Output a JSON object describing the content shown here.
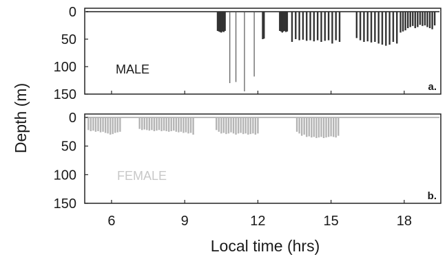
{
  "chart_data": [
    {
      "type": "bar",
      "panel_tag": "a.",
      "label": "MALE",
      "ylabel": "Depth (m)",
      "xlabel": "Local time (hrs)",
      "ylim": [
        150,
        0
      ],
      "xlim": [
        4.9,
        19.5
      ],
      "yticks": [
        "0",
        "50",
        "100",
        "150"
      ],
      "xticks": [
        "6",
        "9",
        "12",
        "15",
        "18"
      ],
      "y_inverted": true,
      "grid": false,
      "colors": {
        "label": "#1a1a1a",
        "dives": "#333333",
        "deep_dives": "#555555"
      },
      "series": [
        {
          "dives": [
            {
              "t": 10.35,
              "depth": 35
            },
            {
              "t": 10.4,
              "depth": 36
            },
            {
              "t": 10.45,
              "depth": 37
            },
            {
              "t": 10.5,
              "depth": 38
            },
            {
              "t": 10.55,
              "depth": 36
            },
            {
              "t": 10.6,
              "depth": 37
            },
            {
              "t": 10.65,
              "depth": 35
            },
            {
              "t": 10.85,
              "depth": 130
            },
            {
              "t": 11.1,
              "depth": 128
            },
            {
              "t": 11.45,
              "depth": 145
            },
            {
              "t": 11.85,
              "depth": 118
            },
            {
              "t": 12.2,
              "depth": 50
            },
            {
              "t": 12.25,
              "depth": 49
            },
            {
              "t": 12.9,
              "depth": 35
            },
            {
              "t": 12.95,
              "depth": 36
            },
            {
              "t": 13.0,
              "depth": 38
            },
            {
              "t": 13.05,
              "depth": 36
            },
            {
              "t": 13.1,
              "depth": 35
            },
            {
              "t": 13.15,
              "depth": 37
            },
            {
              "t": 13.2,
              "depth": 36
            },
            {
              "t": 13.4,
              "depth": 55
            },
            {
              "t": 13.55,
              "depth": 50
            },
            {
              "t": 13.7,
              "depth": 52
            },
            {
              "t": 13.85,
              "depth": 51
            },
            {
              "t": 14.0,
              "depth": 53
            },
            {
              "t": 14.15,
              "depth": 52
            },
            {
              "t": 14.3,
              "depth": 54
            },
            {
              "t": 14.45,
              "depth": 52
            },
            {
              "t": 14.6,
              "depth": 55
            },
            {
              "t": 14.75,
              "depth": 53
            },
            {
              "t": 14.9,
              "depth": 52
            },
            {
              "t": 15.05,
              "depth": 58
            },
            {
              "t": 15.2,
              "depth": 52
            },
            {
              "t": 15.35,
              "depth": 55
            },
            {
              "t": 16.05,
              "depth": 48
            },
            {
              "t": 16.2,
              "depth": 52
            },
            {
              "t": 16.35,
              "depth": 55
            },
            {
              "t": 16.5,
              "depth": 54
            },
            {
              "t": 16.65,
              "depth": 56
            },
            {
              "t": 16.8,
              "depth": 55
            },
            {
              "t": 16.95,
              "depth": 58
            },
            {
              "t": 17.1,
              "depth": 60
            },
            {
              "t": 17.25,
              "depth": 62
            },
            {
              "t": 17.4,
              "depth": 60
            },
            {
              "t": 17.55,
              "depth": 55
            },
            {
              "t": 17.7,
              "depth": 58
            },
            {
              "t": 17.85,
              "depth": 38
            },
            {
              "t": 17.95,
              "depth": 36
            },
            {
              "t": 18.05,
              "depth": 34
            },
            {
              "t": 18.15,
              "depth": 30
            },
            {
              "t": 18.25,
              "depth": 28
            },
            {
              "t": 18.35,
              "depth": 26
            },
            {
              "t": 18.45,
              "depth": 30
            },
            {
              "t": 18.55,
              "depth": 28
            },
            {
              "t": 18.65,
              "depth": 24
            },
            {
              "t": 18.75,
              "depth": 26
            },
            {
              "t": 18.85,
              "depth": 25
            },
            {
              "t": 18.95,
              "depth": 28
            },
            {
              "t": 19.05,
              "depth": 30
            },
            {
              "t": 19.15,
              "depth": 32
            },
            {
              "t": 19.25,
              "depth": 25
            }
          ]
        }
      ]
    },
    {
      "type": "bar",
      "panel_tag": "b.",
      "label": "FEMALE",
      "ylabel": "Depth (m)",
      "xlabel": "Local time (hrs)",
      "ylim": [
        150,
        0
      ],
      "xlim": [
        4.9,
        19.5
      ],
      "yticks": [
        "0",
        "50",
        "100",
        "150"
      ],
      "xticks": [
        "6",
        "9",
        "12",
        "15",
        "18"
      ],
      "y_inverted": true,
      "grid": false,
      "colors": {
        "label": "#c8c8c8",
        "dives": "#b4b4b4"
      },
      "series": [
        {
          "dives": [
            {
              "t": 5.05,
              "depth": 22
            },
            {
              "t": 5.15,
              "depth": 24
            },
            {
              "t": 5.25,
              "depth": 23
            },
            {
              "t": 5.35,
              "depth": 25
            },
            {
              "t": 5.45,
              "depth": 24
            },
            {
              "t": 5.55,
              "depth": 26
            },
            {
              "t": 5.65,
              "depth": 25
            },
            {
              "t": 5.75,
              "depth": 27
            },
            {
              "t": 5.85,
              "depth": 28
            },
            {
              "t": 5.95,
              "depth": 30
            },
            {
              "t": 6.05,
              "depth": 29
            },
            {
              "t": 6.15,
              "depth": 27
            },
            {
              "t": 6.25,
              "depth": 26
            },
            {
              "t": 6.35,
              "depth": 25
            },
            {
              "t": 7.15,
              "depth": 20
            },
            {
              "t": 7.25,
              "depth": 22
            },
            {
              "t": 7.35,
              "depth": 21
            },
            {
              "t": 7.45,
              "depth": 22
            },
            {
              "t": 7.55,
              "depth": 23
            },
            {
              "t": 7.65,
              "depth": 22
            },
            {
              "t": 7.75,
              "depth": 24
            },
            {
              "t": 7.85,
              "depth": 23
            },
            {
              "t": 7.95,
              "depth": 22
            },
            {
              "t": 8.05,
              "depth": 24
            },
            {
              "t": 8.15,
              "depth": 23
            },
            {
              "t": 8.25,
              "depth": 24
            },
            {
              "t": 8.35,
              "depth": 25
            },
            {
              "t": 8.45,
              "depth": 24
            },
            {
              "t": 8.55,
              "depth": 23
            },
            {
              "t": 8.65,
              "depth": 25
            },
            {
              "t": 8.75,
              "depth": 26
            },
            {
              "t": 8.85,
              "depth": 25
            },
            {
              "t": 8.95,
              "depth": 27
            },
            {
              "t": 9.05,
              "depth": 26
            },
            {
              "t": 9.15,
              "depth": 28
            },
            {
              "t": 9.25,
              "depth": 27
            },
            {
              "t": 9.35,
              "depth": 30
            },
            {
              "t": 10.3,
              "depth": 22
            },
            {
              "t": 10.4,
              "depth": 25
            },
            {
              "t": 10.5,
              "depth": 28
            },
            {
              "t": 10.6,
              "depth": 27
            },
            {
              "t": 10.7,
              "depth": 29
            },
            {
              "t": 10.8,
              "depth": 28
            },
            {
              "t": 10.9,
              "depth": 26
            },
            {
              "t": 11.0,
              "depth": 28
            },
            {
              "t": 11.1,
              "depth": 30
            },
            {
              "t": 11.2,
              "depth": 28
            },
            {
              "t": 11.3,
              "depth": 27
            },
            {
              "t": 11.4,
              "depth": 29
            },
            {
              "t": 11.5,
              "depth": 28
            },
            {
              "t": 11.6,
              "depth": 30
            },
            {
              "t": 11.7,
              "depth": 29
            },
            {
              "t": 11.8,
              "depth": 28
            },
            {
              "t": 11.9,
              "depth": 30
            },
            {
              "t": 12.0,
              "depth": 28
            },
            {
              "t": 13.6,
              "depth": 25
            },
            {
              "t": 13.7,
              "depth": 28
            },
            {
              "t": 13.8,
              "depth": 32
            },
            {
              "t": 13.9,
              "depth": 30
            },
            {
              "t": 14.0,
              "depth": 34
            },
            {
              "t": 14.1,
              "depth": 33
            },
            {
              "t": 14.2,
              "depth": 35
            },
            {
              "t": 14.3,
              "depth": 34
            },
            {
              "t": 14.4,
              "depth": 36
            },
            {
              "t": 14.5,
              "depth": 35
            },
            {
              "t": 14.6,
              "depth": 34
            },
            {
              "t": 14.7,
              "depth": 36
            },
            {
              "t": 14.8,
              "depth": 35
            },
            {
              "t": 14.9,
              "depth": 34
            },
            {
              "t": 15.0,
              "depth": 33
            },
            {
              "t": 15.1,
              "depth": 34
            },
            {
              "t": 15.2,
              "depth": 35
            },
            {
              "t": 15.3,
              "depth": 32
            }
          ]
        }
      ]
    }
  ]
}
